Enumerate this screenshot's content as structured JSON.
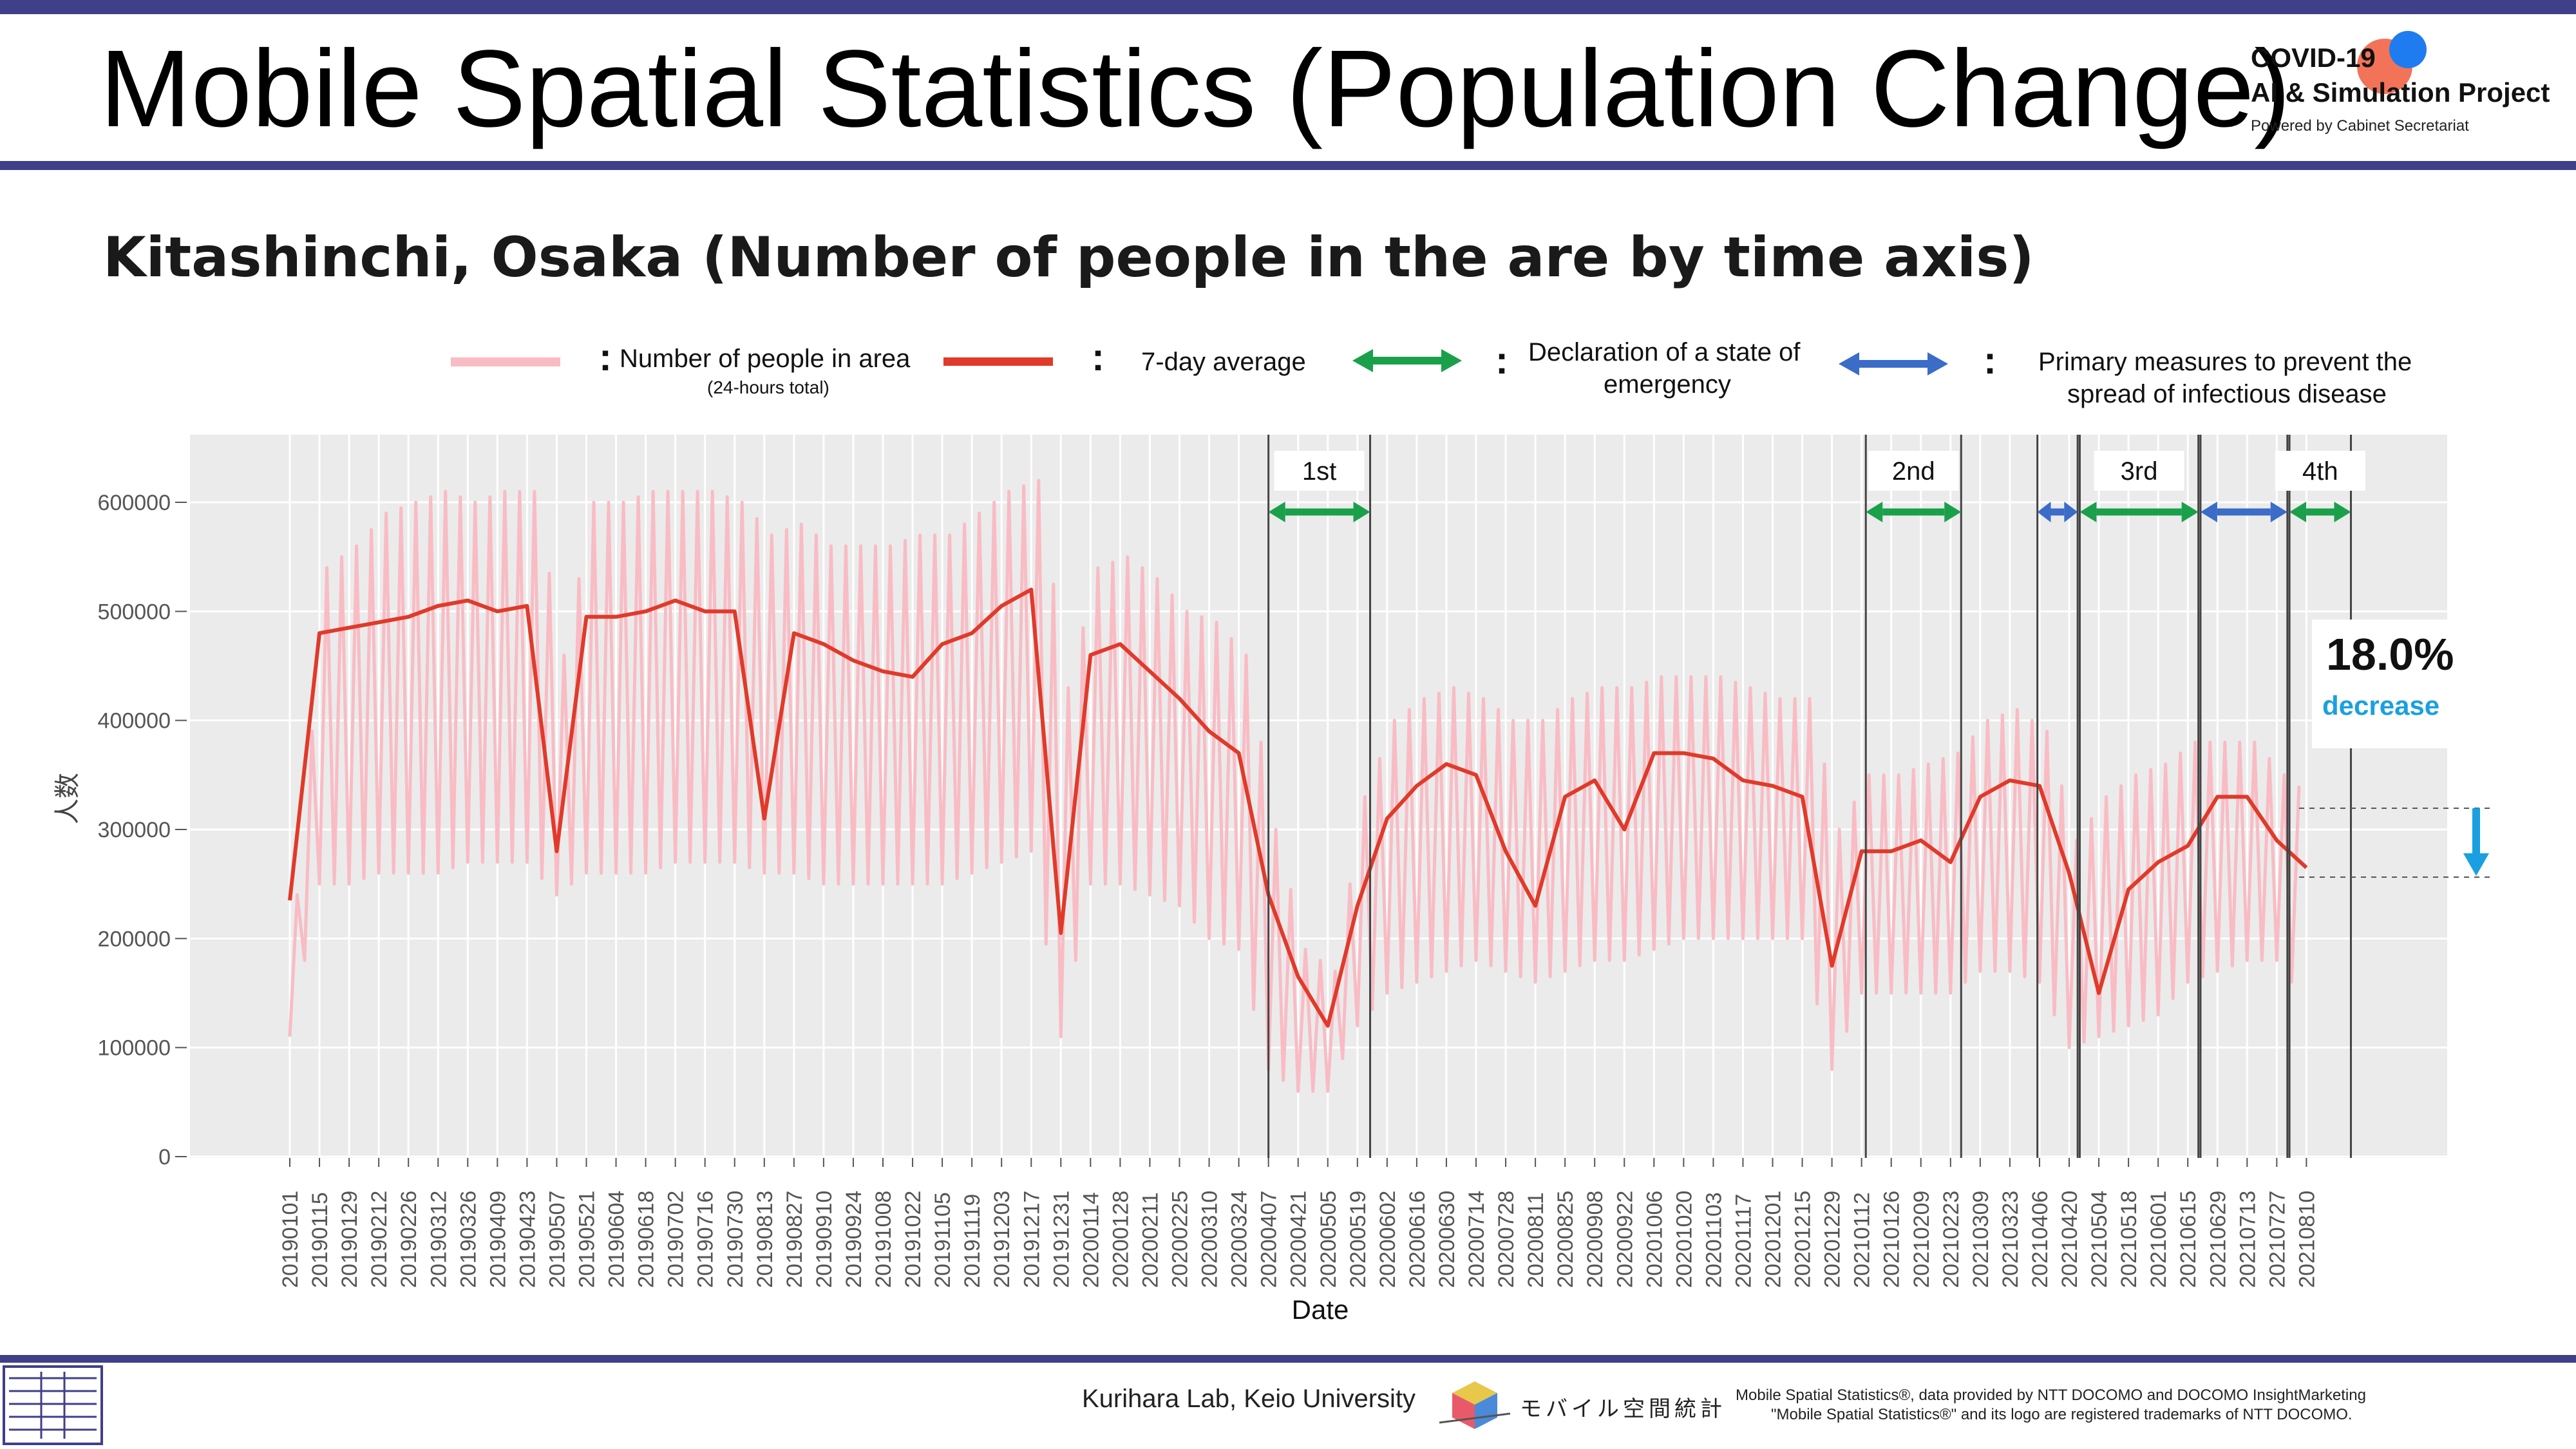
{
  "header": {
    "title": "Mobile Spatial Statistics (Population Change)",
    "badge_line1": "COVID-19",
    "badge_line2": "AI & Simulation Project",
    "badge_line3": "Powered by Cabinet Secretariat"
  },
  "subtitle": "Kitashinchi, Osaka (Number of people in the are by time axis)",
  "legend": {
    "daily": "Number of people in area",
    "daily_sub": "(24-hours total)",
    "avg": "7-day average",
    "emergency_line1": "Declaration of a state of",
    "emergency_line2": "emergency",
    "primary_line1": "Primary measures to prevent the",
    "primary_line2": "spread of infectious disease"
  },
  "annotation": {
    "percent": "18.0%",
    "label": "decrease"
  },
  "footer": {
    "lab": "Kurihara Lab, Keio University",
    "logo_text": "モバイル空間統計",
    "credit_line1": "Mobile Spatial Statistics®, data provided by NTT DOCOMO and DOCOMO InsightMarketing",
    "credit_line2": "\"Mobile Spatial Statistics®\" and its logo are registered trademarks of NTT DOCOMO."
  },
  "colors": {
    "daily": "#f9bcc4",
    "avg": "#e03a2a",
    "emergency": "#1aa04a",
    "primary": "#3a6cc8",
    "plot_bg": "#ebebeb",
    "brand": "#3f3f8a"
  },
  "chart_data": {
    "type": "line",
    "xlabel": "Date",
    "ylabel": "人数",
    "ylim": [
      0,
      650000
    ],
    "yticks": [
      0,
      100000,
      200000,
      300000,
      400000,
      500000,
      600000
    ],
    "ytick_labels": [
      "0",
      "100000",
      "200000",
      "300000",
      "400000",
      "500000",
      "600000"
    ],
    "x_categories": [
      "20190101",
      "20190115",
      "20190129",
      "20190212",
      "20190226",
      "20190312",
      "20190326",
      "20190409",
      "20190423",
      "20190507",
      "20190521",
      "20190604",
      "20190618",
      "20190702",
      "20190716",
      "20190730",
      "20190813",
      "20190827",
      "20190910",
      "20190924",
      "20191008",
      "20191022",
      "20191105",
      "20191119",
      "20191203",
      "20191217",
      "20191231",
      "20200114",
      "20200128",
      "20200211",
      "20200225",
      "20200310",
      "20200324",
      "20200407",
      "20200421",
      "20200505",
      "20200519",
      "20200602",
      "20200616",
      "20200630",
      "20200714",
      "20200728",
      "20200811",
      "20200825",
      "20200908",
      "20200922",
      "20201006",
      "20201020",
      "20201103",
      "20201117",
      "20201201",
      "20201215",
      "20201229",
      "20210112",
      "20210126",
      "20210209",
      "20210223",
      "20210309",
      "20210323",
      "20210406",
      "20210420",
      "20210504",
      "20210518",
      "20210601",
      "20210615",
      "20210629",
      "20210713",
      "20210727",
      "20210810"
    ],
    "series": [
      {
        "name": "Number of people in area",
        "values_high": [
          240000,
          540000,
          560000,
          590000,
          600000,
          610000,
          600000,
          610000,
          610000,
          460000,
          600000,
          600000,
          610000,
          610000,
          610000,
          600000,
          570000,
          580000,
          560000,
          560000,
          560000,
          570000,
          570000,
          590000,
          610000,
          620000,
          430000,
          540000,
          550000,
          530000,
          500000,
          490000,
          460000,
          300000,
          190000,
          170000,
          330000,
          400000,
          420000,
          430000,
          420000,
          400000,
          400000,
          420000,
          430000,
          430000,
          440000,
          440000,
          440000,
          430000,
          420000,
          420000,
          300000,
          350000,
          350000,
          360000,
          370000,
          400000,
          410000,
          390000,
          290000,
          330000,
          350000,
          360000,
          380000,
          380000,
          380000,
          350000,
          330000
        ],
        "values_low": [
          110000,
          250000,
          250000,
          260000,
          260000,
          260000,
          270000,
          270000,
          270000,
          240000,
          260000,
          260000,
          260000,
          270000,
          270000,
          270000,
          260000,
          260000,
          250000,
          250000,
          250000,
          250000,
          250000,
          260000,
          270000,
          280000,
          110000,
          250000,
          250000,
          240000,
          230000,
          200000,
          190000,
          80000,
          60000,
          60000,
          120000,
          150000,
          160000,
          170000,
          180000,
          170000,
          160000,
          170000,
          180000,
          180000,
          190000,
          200000,
          200000,
          200000,
          200000,
          200000,
          80000,
          150000,
          150000,
          150000,
          150000,
          170000,
          170000,
          160000,
          100000,
          110000,
          120000,
          130000,
          160000,
          170000,
          180000,
          180000,
          140000
        ]
      },
      {
        "name": "7-day average",
        "values": [
          235000,
          480000,
          485000,
          490000,
          495000,
          505000,
          510000,
          500000,
          505000,
          280000,
          495000,
          495000,
          500000,
          510000,
          500000,
          500000,
          310000,
          480000,
          470000,
          455000,
          445000,
          440000,
          470000,
          480000,
          505000,
          520000,
          205000,
          460000,
          470000,
          445000,
          420000,
          390000,
          370000,
          240000,
          165000,
          120000,
          230000,
          310000,
          340000,
          360000,
          350000,
          280000,
          230000,
          330000,
          345000,
          300000,
          370000,
          370000,
          365000,
          345000,
          340000,
          330000,
          175000,
          280000,
          280000,
          290000,
          270000,
          330000,
          345000,
          340000,
          260000,
          150000,
          245000,
          270000,
          285000,
          330000,
          330000,
          290000,
          265000
        ]
      }
    ],
    "periods": [
      {
        "label": "1st",
        "type": "emergency",
        "start": "20200407",
        "end": "20200525"
      },
      {
        "label": "2nd",
        "type": "emergency",
        "start": "20210114",
        "end": "20210228"
      },
      {
        "label": "",
        "type": "primary",
        "start": "20210405",
        "end": "20210424"
      },
      {
        "label": "3rd",
        "type": "emergency",
        "start": "20210425",
        "end": "20210620"
      },
      {
        "label": "",
        "type": "primary",
        "start": "20210621",
        "end": "20210801"
      },
      {
        "label": "4th",
        "type": "emergency",
        "start": "20210802",
        "end": "20210831"
      }
    ],
    "grid": true,
    "legend_position": "top"
  }
}
